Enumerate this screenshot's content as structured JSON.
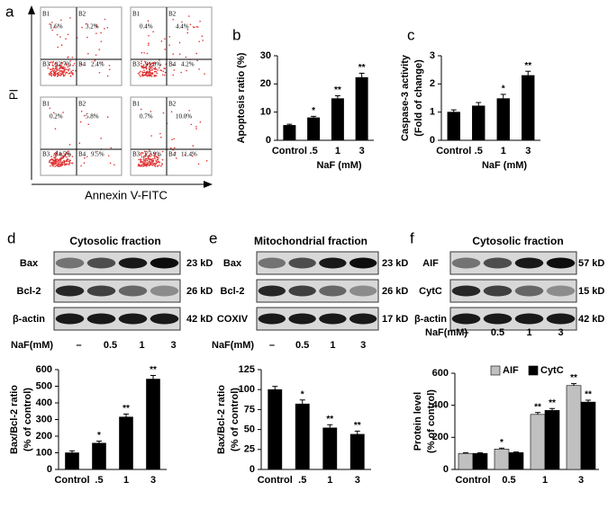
{
  "flow": {
    "letter": "a",
    "ylabel": "PI",
    "xlabel": "Annexin V-FITC",
    "plots": [
      {
        "quadrants": [
          {
            "label": "B1",
            "value": "1.6%"
          },
          {
            "label": "B2",
            "value": "3.2%"
          },
          {
            "label": "B3",
            "value": "92.7%"
          },
          {
            "label": "B4",
            "value": "2.4%"
          }
        ]
      },
      {
        "quadrants": [
          {
            "label": "B1",
            "value": "0.4%"
          },
          {
            "label": "B2",
            "value": "4.4%"
          },
          {
            "label": "B3",
            "value": "91.0%"
          },
          {
            "label": "B4",
            "value": "4.2%"
          }
        ]
      },
      {
        "quadrants": [
          {
            "label": "B1",
            "value": "0.2%"
          },
          {
            "label": "B2",
            "value": "5.8%"
          },
          {
            "label": "B3",
            "value": "84.5%"
          },
          {
            "label": "B4",
            "value": "9.5%"
          }
        ]
      },
      {
        "quadrants": [
          {
            "label": "B1",
            "value": "0.7%"
          },
          {
            "label": "B2",
            "value": "10.0%"
          },
          {
            "label": "B3",
            "value": "77.9%"
          },
          {
            "label": "B4",
            "value": "11.4%"
          }
        ]
      }
    ]
  },
  "blots": [
    {
      "letter": "d",
      "title": "Cytosolic  fraction",
      "rows": [
        {
          "label": "Bax",
          "size": "23 kD"
        },
        {
          "label": "Bcl-2",
          "size": "26 kD"
        },
        {
          "label": "β-actin",
          "size": "42 kD"
        }
      ],
      "treatment": "NaF(mM)",
      "lanes": [
        "–",
        "0.5",
        "1",
        "3"
      ]
    },
    {
      "letter": "e",
      "title": "Mitochondrial fraction",
      "rows": [
        {
          "label": "Bax",
          "size": "23 kD"
        },
        {
          "label": "Bcl-2",
          "size": "26 kD"
        },
        {
          "label": "COXIV",
          "size": "17 kD"
        }
      ],
      "treatment": "NaF(mM)",
      "lanes": [
        "–",
        "0.5",
        "1",
        "3"
      ]
    },
    {
      "letter": "f",
      "title": "Cytosolic fraction",
      "rows": [
        {
          "label": "AIF",
          "size": "57 kD"
        },
        {
          "label": "CytC",
          "size": "15 kD"
        },
        {
          "label": "β-actin",
          "size": "42 kD"
        }
      ],
      "treatment": "NaF(mM)",
      "lanes": [
        "–",
        "0.5",
        "1",
        "3"
      ]
    }
  ],
  "chart_data": [
    {
      "type": "bar",
      "panel": "b",
      "ylabel": [
        "Apoptosis ratio (%)"
      ],
      "xlabel": "NaF (mM)",
      "categories": [
        "Control",
        ".5",
        "1",
        "3"
      ],
      "values": [
        5.3,
        8,
        14.8,
        22.3
      ],
      "errors": [
        0.4,
        0.5,
        1,
        1.5
      ],
      "annotations": [
        null,
        "*",
        "**",
        "**"
      ],
      "color": "#000000",
      "ylim": [
        0,
        30
      ],
      "yticks": [
        0,
        10,
        20,
        30
      ]
    },
    {
      "type": "bar",
      "panel": "c",
      "ylabel": [
        "Caspase-3 activity",
        "(Fold of change)"
      ],
      "xlabel": "NaF (mM)",
      "categories": [
        "Control",
        ".5",
        "1",
        "3"
      ],
      "values": [
        1.0,
        1.22,
        1.48,
        2.3
      ],
      "errors": [
        0.08,
        0.12,
        0.15,
        0.15
      ],
      "annotations": [
        null,
        null,
        "*",
        "**"
      ],
      "color": "#000000",
      "ylim": [
        0,
        3
      ],
      "yticks": [
        0,
        1,
        2,
        3
      ]
    },
    {
      "type": "bar",
      "ylabel": [
        "Bax/Bcl-2 ratio",
        "(% of control)"
      ],
      "categories": [
        "Control",
        ".5",
        "1",
        "3"
      ],
      "values": [
        100,
        158,
        315,
        543
      ],
      "errors": [
        12,
        12,
        18,
        22
      ],
      "annotations": [
        null,
        "*",
        "**",
        "**"
      ],
      "color": "#000000",
      "ylim": [
        0,
        600
      ],
      "yticks": [
        0,
        100,
        200,
        300,
        400,
        500,
        600
      ]
    },
    {
      "type": "bar",
      "ylabel": [
        "Bax/Bcl-2 ratio",
        "(% of control)"
      ],
      "categories": [
        "Control",
        ".5",
        "1",
        "3"
      ],
      "values": [
        100,
        82,
        52,
        44
      ],
      "errors": [
        4,
        5,
        4,
        4
      ],
      "annotations": [
        null,
        "*",
        "**",
        "**"
      ],
      "color": "#000000",
      "ylim": [
        0,
        125
      ],
      "yticks": [
        0,
        25,
        50,
        75,
        100,
        125
      ]
    },
    {
      "type": "bar",
      "ylabel": [
        "Protein level",
        "(% of control)"
      ],
      "categories": [
        "Control",
        "0.5",
        "1",
        "3"
      ],
      "series": [
        {
          "name": "AIF",
          "color": "#c0c0c0",
          "values": [
            100,
            127,
            343,
            523
          ],
          "errors": [
            4,
            6,
            12,
            12
          ],
          "annotations": [
            null,
            "*",
            "**",
            "**"
          ]
        },
        {
          "name": "CytC",
          "color": "#000000",
          "values": [
            100,
            105,
            368,
            420
          ],
          "errors": [
            4,
            4,
            12,
            12
          ],
          "annotations": [
            null,
            null,
            "**",
            "**"
          ]
        }
      ],
      "ylim": [
        0,
        600
      ],
      "yticks": [
        0,
        200,
        400,
        600
      ],
      "legend": "top"
    }
  ]
}
